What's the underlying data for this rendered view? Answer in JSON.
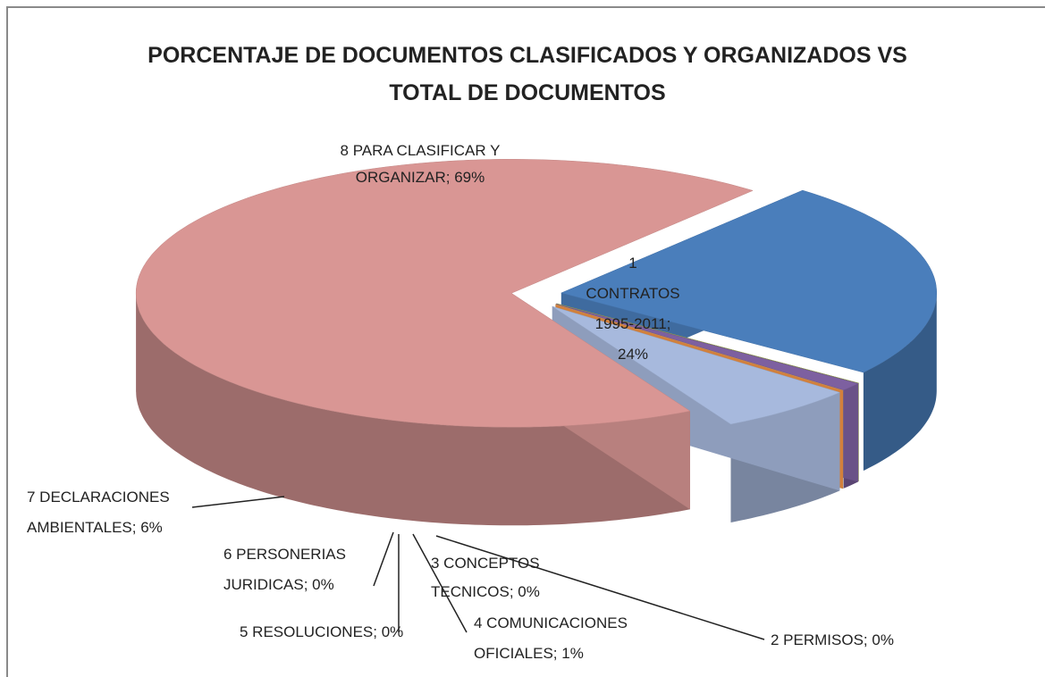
{
  "chart_data": {
    "type": "pie",
    "three_d": true,
    "exploded": true,
    "title": "PORCENTAJE  DE DOCUMENTOS CLASIFICADOS Y ORGANIZADOS VS\nTOTAL DE DOCUMENTOS",
    "values": [
      24,
      0,
      0,
      1,
      0,
      0,
      6,
      69
    ],
    "value_labels": [
      "1\nCONTRATOS\n1995-2011;\n24%",
      "2 PERMISOS; 0%",
      "3 CONCEPTOS\nTECNICOS; 0%",
      "4 COMUNICACIONES\nOFICIALES; 1%",
      "5 RESOLUCIONES; 0%",
      "6 PERSONERIAS\nJURIDICAS; 0%",
      "7 DECLARACIONES\nAMBIENTALES; 6%",
      "8 PARA CLASIFICAR Y\nORGANIZAR; 69%"
    ],
    "colors": [
      "#4a7ebb",
      "#be4b48",
      "#98b954",
      "#7d60a0",
      "#46aac5",
      "#f79646",
      "#a7b9dd",
      "#d99694"
    ]
  }
}
